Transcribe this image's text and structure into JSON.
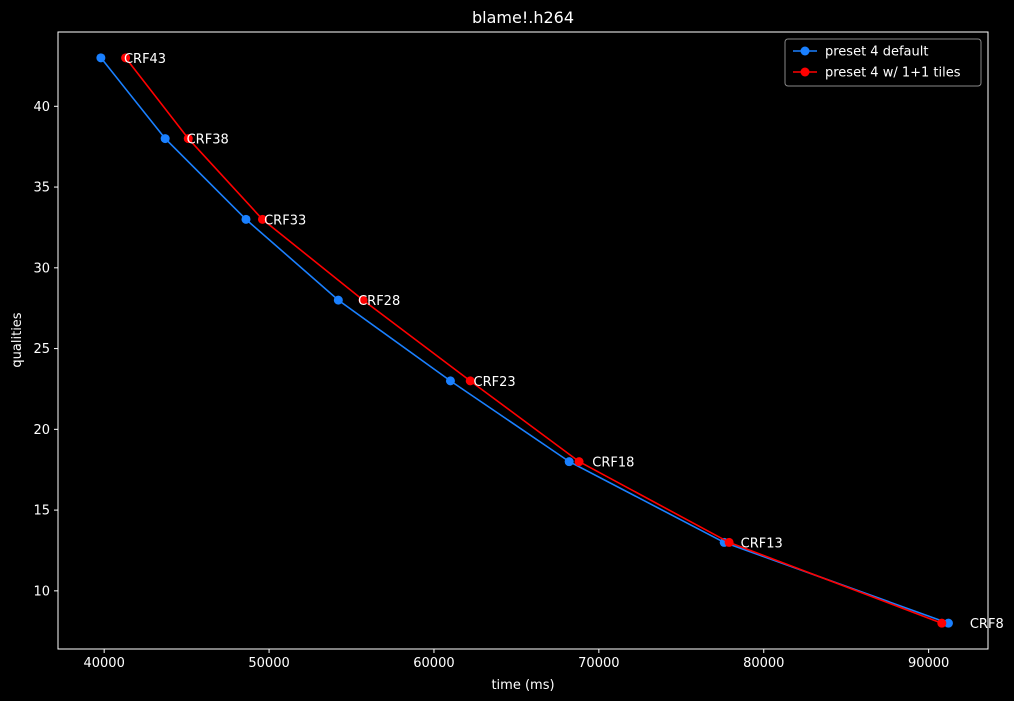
{
  "chart_data": {
    "type": "line",
    "title": "blame!.h264",
    "xlabel": "time (ms)",
    "ylabel": "qualities",
    "xlim": [
      37200,
      93600
    ],
    "ylim": [
      6.4,
      44.6
    ],
    "xticks": [
      40000,
      50000,
      60000,
      70000,
      80000,
      90000
    ],
    "yticks": [
      10,
      15,
      20,
      25,
      30,
      35,
      40
    ],
    "grid": false,
    "legend_position": "top-right",
    "series": [
      {
        "name": "preset 4 default",
        "color": "#1a80ff",
        "x": [
          39800,
          43700,
          48600,
          54200,
          61000,
          68200,
          77600,
          91200
        ],
        "y": [
          43,
          38,
          33,
          28,
          23,
          18,
          13,
          8
        ]
      },
      {
        "name": "preset 4 w/ 1+1 tiles",
        "color": "#ff0000",
        "x": [
          41300,
          45100,
          49600,
          55700,
          62200,
          68800,
          77900,
          90800
        ],
        "y": [
          43,
          38,
          33,
          28,
          23,
          18,
          13,
          8
        ]
      }
    ],
    "annotations": [
      {
        "text": "CRF43",
        "x": 41200,
        "y": 43
      },
      {
        "text": "CRF38",
        "x": 45000,
        "y": 38
      },
      {
        "text": "CRF33",
        "x": 49700,
        "y": 33
      },
      {
        "text": "CRF28",
        "x": 55400,
        "y": 28
      },
      {
        "text": "CRF23",
        "x": 62400,
        "y": 23
      },
      {
        "text": "CRF18",
        "x": 69600,
        "y": 18
      },
      {
        "text": "CRF13",
        "x": 78600,
        "y": 13
      },
      {
        "text": "CRF8",
        "x": 92500,
        "y": 8
      }
    ]
  }
}
